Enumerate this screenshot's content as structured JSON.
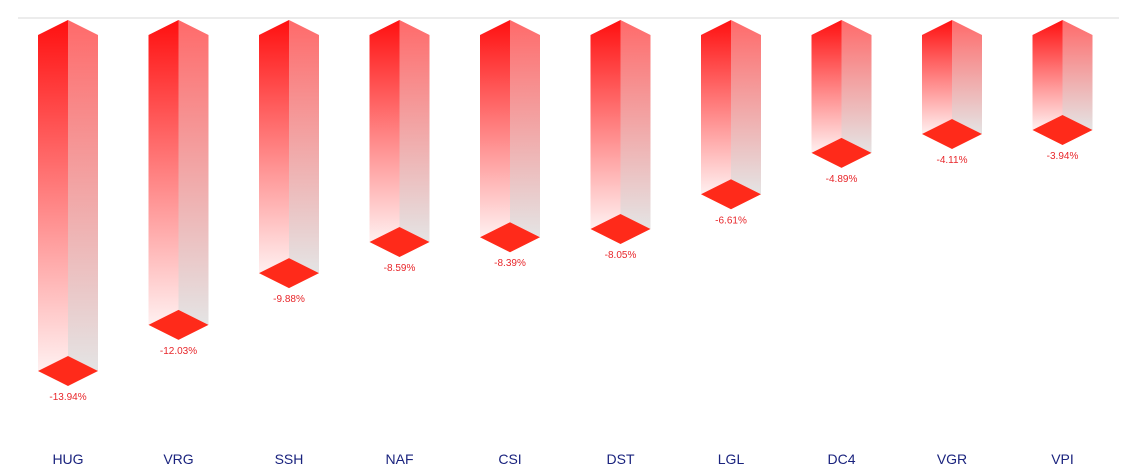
{
  "chart_data": {
    "type": "bar",
    "categories": [
      "HUG",
      "VRG",
      "SSH",
      "NAF",
      "CSI",
      "DST",
      "LGL",
      "DC4",
      "VGR",
      "VPI"
    ],
    "values": [
      -13.94,
      -12.03,
      -9.88,
      -8.59,
      -8.39,
      -8.05,
      -6.61,
      -4.89,
      -4.11,
      -3.94
    ],
    "value_labels": [
      "-13.94%",
      "-12.03%",
      "-9.88%",
      "-8.59%",
      "-8.39%",
      "-8.05%",
      "-6.61%",
      "-4.89%",
      "-4.11%",
      "-3.94%"
    ],
    "title": "",
    "xlabel": "",
    "ylabel": "",
    "ylim": [
      -14,
      0
    ],
    "grid": false,
    "legend": "none",
    "style": "3d-gradient-columns"
  },
  "colors": {
    "bar_top": "#ff1010",
    "bar_fade": "#fff0f0",
    "side_top": "#ff6a6a",
    "side_fade": "#e4e4e4",
    "cap": "#ff2a1a",
    "value_label": "#e8262a",
    "category_label": "#1a237e",
    "baseline": "#d9d9d9"
  }
}
